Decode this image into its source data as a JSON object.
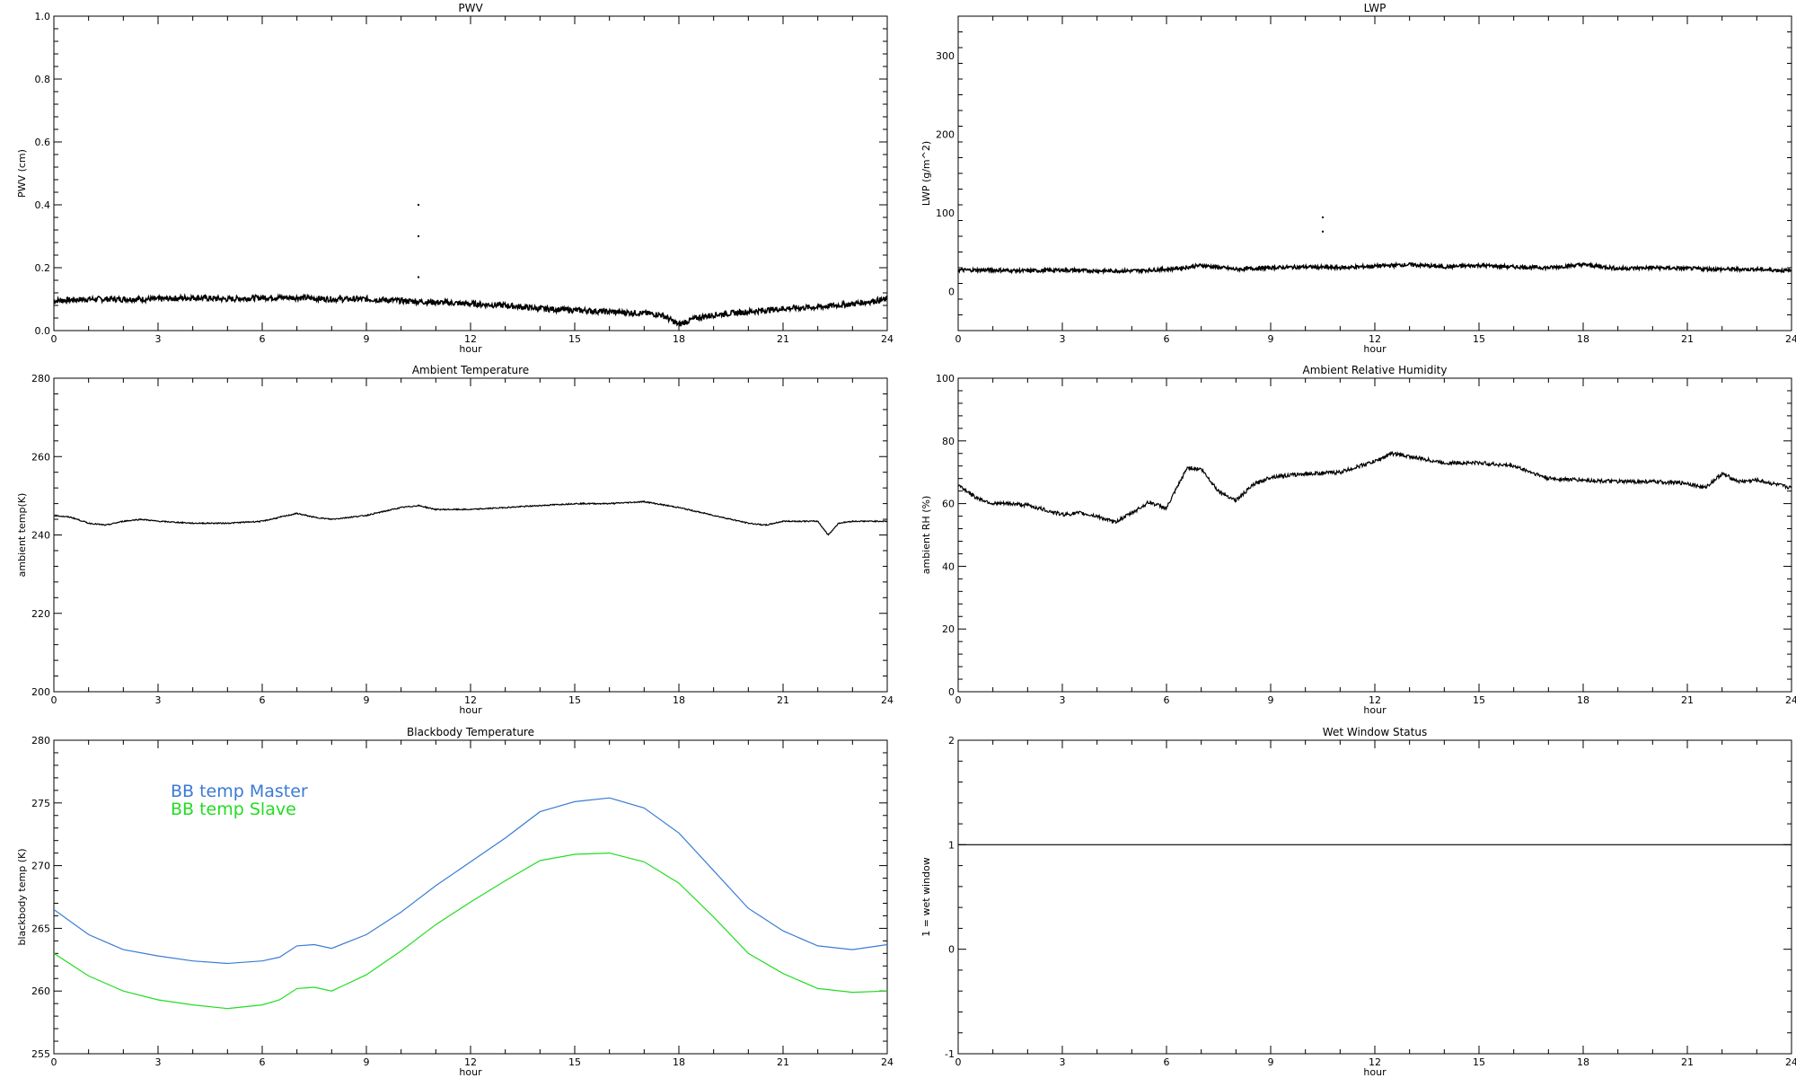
{
  "chart_data": [
    {
      "type": "line",
      "title": "PWV",
      "xlabel": "hour",
      "ylabel": "PWV (cm)",
      "xlim": [
        0,
        24
      ],
      "ylim": [
        0,
        1.0
      ],
      "xticks": [
        "0",
        "3",
        "6",
        "9",
        "12",
        "15",
        "18",
        "21",
        "24"
      ],
      "yticks": [
        "0.0",
        "0.2",
        "0.4",
        "0.6",
        "0.8",
        "1.0"
      ],
      "series": [
        {
          "color": "#000000",
          "x": [
            0,
            1,
            2,
            3,
            4,
            5,
            6,
            7,
            8,
            9,
            10,
            11,
            12,
            13,
            14,
            15,
            16,
            17,
            17.5,
            18,
            18.5,
            19,
            20,
            21,
            22,
            23,
            24
          ],
          "y": [
            0.095,
            0.1,
            0.1,
            0.1,
            0.105,
            0.1,
            0.105,
            0.105,
            0.1,
            0.1,
            0.095,
            0.09,
            0.085,
            0.08,
            0.07,
            0.065,
            0.06,
            0.055,
            0.05,
            0.02,
            0.04,
            0.05,
            0.06,
            0.07,
            0.075,
            0.085,
            0.1
          ]
        }
      ],
      "outliers": {
        "x": [
          10.5,
          10.5,
          10.5
        ],
        "y": [
          0.4,
          0.3,
          0.17
        ]
      }
    },
    {
      "type": "line",
      "title": "LWP",
      "xlabel": "hour",
      "ylabel": "LWP (g/m^2)",
      "xlim": [
        0,
        24
      ],
      "ylim": [
        -50,
        350
      ],
      "xticks": [
        "0",
        "3",
        "6",
        "9",
        "12",
        "15",
        "18",
        "21",
        "24"
      ],
      "yticks": [
        "0",
        "100",
        "200",
        "300"
      ],
      "series": [
        {
          "color": "#000000",
          "x": [
            0,
            1,
            2,
            3,
            4,
            5,
            6,
            6.5,
            7,
            8,
            9,
            10,
            11,
            12,
            13,
            14,
            15,
            16,
            17,
            18,
            19,
            20,
            21,
            22,
            23,
            24
          ],
          "y": [
            27,
            27,
            26,
            27,
            26,
            26,
            28,
            30,
            33,
            28,
            30,
            31,
            30,
            32,
            34,
            31,
            33,
            31,
            30,
            34,
            29,
            30,
            29,
            28,
            28,
            26
          ]
        }
      ],
      "outliers": {
        "x": [
          10.5,
          10.5
        ],
        "y": [
          94,
          76
        ]
      }
    },
    {
      "type": "line",
      "title": "Ambient Temperature",
      "xlabel": "hour",
      "ylabel": "ambient temp(K)",
      "xlim": [
        0,
        24
      ],
      "ylim": [
        200,
        280
      ],
      "xticks": [
        "0",
        "3",
        "6",
        "9",
        "12",
        "15",
        "18",
        "21",
        "24"
      ],
      "yticks": [
        "200",
        "220",
        "240",
        "260",
        "280"
      ],
      "series": [
        {
          "color": "#000000",
          "x": [
            0,
            0.5,
            1,
            1.5,
            2,
            2.5,
            3,
            4,
            5,
            6,
            6.5,
            7,
            7.5,
            8,
            9,
            10,
            10.5,
            11,
            12,
            13,
            14,
            15,
            16,
            17,
            18,
            19,
            20,
            20.5,
            21,
            21.5,
            22,
            22.3,
            22.6,
            23,
            24
          ],
          "y": [
            245,
            244.5,
            243,
            242.5,
            243.5,
            244,
            243.5,
            243,
            243,
            243.5,
            244.5,
            245.5,
            244.5,
            244,
            245,
            247,
            247.5,
            246.5,
            246.5,
            247,
            247.5,
            248,
            248,
            248.5,
            247,
            245,
            243,
            242.5,
            243.5,
            243.5,
            243.5,
            240,
            243,
            243.5,
            243.5
          ]
        }
      ]
    },
    {
      "type": "line",
      "title": "Ambient Relative Humidity",
      "xlabel": "hour",
      "ylabel": "ambient RH (%)",
      "xlim": [
        0,
        24
      ],
      "ylim": [
        0,
        100
      ],
      "xticks": [
        "0",
        "3",
        "6",
        "9",
        "12",
        "15",
        "18",
        "21",
        "24"
      ],
      "yticks": [
        "0",
        "20",
        "40",
        "60",
        "80",
        "100"
      ],
      "series": [
        {
          "color": "#000000",
          "x": [
            0,
            0.5,
            1,
            1.5,
            2,
            2.5,
            3,
            3.5,
            4,
            4.5,
            5,
            5.5,
            6,
            6.3,
            6.6,
            7,
            7.5,
            8,
            8.5,
            9,
            10,
            11,
            12,
            12.5,
            13,
            14,
            15,
            16,
            17,
            18,
            19,
            20,
            21,
            21.5,
            22,
            22.5,
            23,
            24
          ],
          "y": [
            66,
            62,
            60,
            60,
            59.5,
            58,
            56.5,
            57,
            56,
            54,
            57,
            60.5,
            58.5,
            65,
            71.5,
            71,
            64,
            61,
            66,
            68.5,
            69.5,
            70,
            73.5,
            76,
            75,
            73,
            73,
            72,
            68,
            67.5,
            67,
            67,
            66.5,
            65,
            69.5,
            67,
            67.5,
            65
          ]
        }
      ]
    },
    {
      "type": "line",
      "title": "Blackbody Temperature",
      "xlabel": "hour",
      "ylabel": "blackbody temp (K)",
      "xlim": [
        0,
        24
      ],
      "ylim": [
        255,
        280
      ],
      "xticks": [
        "0",
        "3",
        "6",
        "9",
        "12",
        "15",
        "18",
        "21",
        "24"
      ],
      "yticks": [
        "255",
        "260",
        "265",
        "270",
        "275",
        "280"
      ],
      "legend_position": "top-left",
      "series": [
        {
          "name": "BB temp Master",
          "color": "#3a7bd5",
          "x": [
            0,
            1,
            2,
            3,
            4,
            5,
            6,
            6.5,
            7,
            7.5,
            8,
            9,
            10,
            11,
            12,
            13,
            14,
            15,
            16,
            17,
            18,
            19,
            20,
            21,
            22,
            23,
            24
          ],
          "y": [
            266.5,
            264.5,
            263.3,
            262.8,
            262.4,
            262.2,
            262.4,
            262.7,
            263.6,
            263.7,
            263.4,
            264.5,
            266.3,
            268.4,
            270.3,
            272.2,
            274.3,
            275.1,
            275.4,
            274.6,
            272.6,
            269.6,
            266.6,
            264.8,
            263.6,
            263.3,
            263.7
          ]
        },
        {
          "name": "BB temp Slave",
          "color": "#22dd22",
          "x": [
            0,
            1,
            2,
            3,
            4,
            5,
            6,
            6.5,
            7,
            7.5,
            8,
            9,
            10,
            11,
            12,
            13,
            14,
            15,
            16,
            17,
            18,
            19,
            20,
            21,
            22,
            23,
            24
          ],
          "y": [
            263.0,
            261.2,
            260.0,
            259.3,
            258.9,
            258.6,
            258.9,
            259.3,
            260.2,
            260.3,
            260.0,
            261.3,
            263.2,
            265.3,
            267.1,
            268.8,
            270.4,
            270.9,
            271.0,
            270.3,
            268.6,
            265.9,
            263.0,
            261.4,
            260.2,
            259.9,
            260.0
          ]
        }
      ]
    },
    {
      "type": "line",
      "title": "Wet Window Status",
      "xlabel": "hour",
      "ylabel": "1 = wet window",
      "xlim": [
        0,
        24
      ],
      "ylim": [
        -1,
        2
      ],
      "xticks": [
        "0",
        "3",
        "6",
        "9",
        "12",
        "15",
        "18",
        "21",
        "24"
      ],
      "yticks": [
        "-1",
        "0",
        "1",
        "2"
      ],
      "series": [
        {
          "color": "#000000",
          "x": [
            0,
            24
          ],
          "y": [
            1,
            1
          ]
        }
      ]
    }
  ]
}
